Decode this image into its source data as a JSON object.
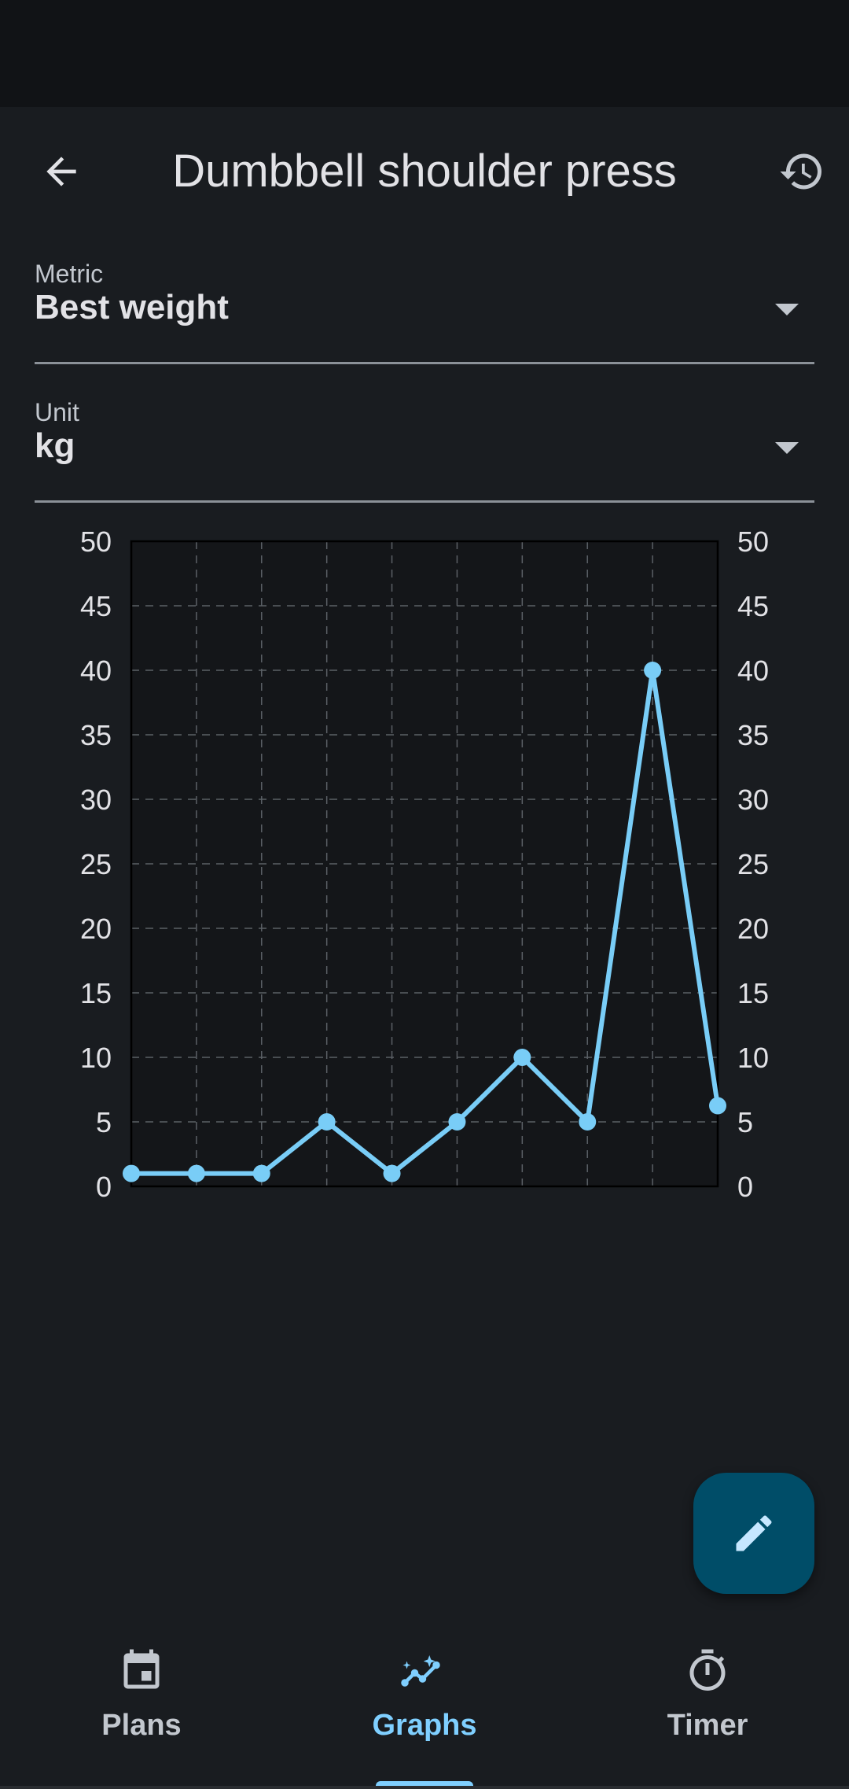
{
  "header": {
    "title": "Dumbbell shoulder press",
    "back_icon": "arrow-back-icon",
    "history_icon": "history-icon"
  },
  "metric_field": {
    "label": "Metric",
    "value": "Best weight"
  },
  "unit_field": {
    "label": "Unit",
    "value": "kg"
  },
  "chart_data": {
    "type": "line",
    "x": [
      1,
      2,
      3,
      4,
      5,
      6,
      7,
      8,
      9,
      10
    ],
    "series": [
      {
        "values": [
          1,
          1,
          1,
          5,
          1,
          5,
          10,
          5,
          40,
          6.25
        ],
        "color": "#79cdf7"
      }
    ],
    "ylim": [
      0,
      50
    ],
    "y_ticks": [
      "0",
      "5",
      "10",
      "15",
      "20",
      "25",
      "30",
      "35",
      "40",
      "45",
      "50"
    ],
    "grid": true,
    "y_axis_both_sides": true
  },
  "fab": {
    "icon": "edit-icon"
  },
  "nav": {
    "items": [
      {
        "label": "Plans",
        "icon": "calendar-icon",
        "active": false
      },
      {
        "label": "Graphs",
        "icon": "insights-icon",
        "active": true
      },
      {
        "label": "Timer",
        "icon": "timer-icon",
        "active": false
      }
    ]
  },
  "colors": {
    "accent": "#7fcfff",
    "background": "#191c20",
    "fab": "#004d68",
    "line": "#79cdf7"
  }
}
